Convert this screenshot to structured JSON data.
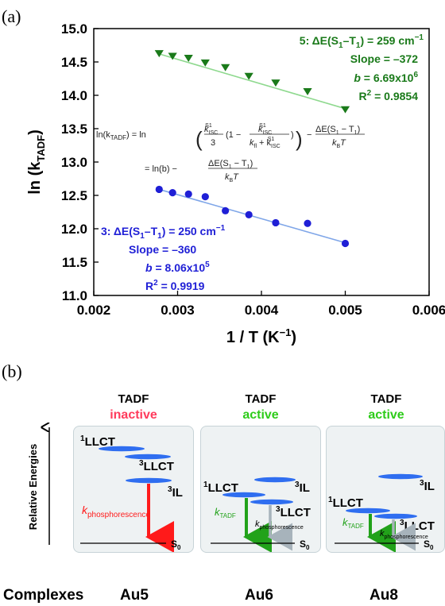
{
  "panel_a_label": "(a)",
  "panel_b_label": "(b)",
  "chart_data": {
    "type": "scatter",
    "xlabel_main": "1 / T (K",
    "xlabel_sup": "−1",
    "xlabel_end": ")",
    "ylabel_main": "ln (k",
    "ylabel_sub": "TADF",
    "ylabel_end": ")",
    "xlim": [
      0.002,
      0.006
    ],
    "ylim": [
      11.0,
      15.0
    ],
    "xticks": [
      "0.002",
      "0.003",
      "0.004",
      "0.005",
      "0.006"
    ],
    "yticks": [
      "11.0",
      "11.5",
      "12.0",
      "12.5",
      "13.0",
      "13.5",
      "14.0",
      "14.5",
      "15.0"
    ],
    "grid": false,
    "series": [
      {
        "marker": "triangle-down",
        "color": "#1a7a1a",
        "line_color": "#8fd98f",
        "x": [
          0.00278,
          0.00294,
          0.00313,
          0.00333,
          0.00357,
          0.00385,
          0.00417,
          0.00455,
          0.005
        ],
        "y": [
          14.63,
          14.59,
          14.56,
          14.49,
          14.42,
          14.29,
          14.19,
          14.06,
          13.79
        ],
        "fit": [
          [
            0.00278,
            14.62
          ],
          [
            0.005,
            13.8
          ]
        ],
        "annotation": {
          "title": "5: ΔE(S",
          "title_sub1": "1",
          "title_mid": "–T",
          "title_sub2": "1",
          "title_end": ") = 259 cm",
          "title_sup": "−1",
          "slope": "Slope = –372",
          "b_italic": "b",
          "b_text": " = 6.69x10",
          "b_sup": "6",
          "r2_main": "R",
          "r2_sup": "2",
          "r2_end": " = 0.9854"
        }
      },
      {
        "marker": "circle",
        "color": "#1f1fd6",
        "line_color": "#7fa6e8",
        "x": [
          0.00278,
          0.00294,
          0.00313,
          0.00333,
          0.00357,
          0.00385,
          0.00417,
          0.00455,
          0.005
        ],
        "y": [
          12.59,
          12.54,
          12.52,
          12.48,
          12.27,
          12.21,
          12.09,
          12.08,
          11.78
        ],
        "fit": [
          [
            0.00278,
            12.59
          ],
          [
            0.005,
            11.79
          ]
        ],
        "annotation": {
          "title": "3: ΔE(S",
          "title_sub1": "1",
          "title_mid": "–T",
          "title_sub2": "1",
          "title_end": ") = 250 cm",
          "title_sup": "−1",
          "slope": "Slope = –360",
          "b_italic": "b",
          "b_text": " = 8.06x10",
          "b_sup": "5",
          "r2_main": "R",
          "r2_sup": "2",
          "r2_end": " = 0.9919"
        }
      }
    ],
    "equation": {
      "lhs": "ln(k",
      "lhs_sub": "TADF",
      "lhs_end": ") = ln",
      "frac1_num": "k",
      "frac1_num_sub": "ISC",
      "frac1_num_sup": "S1",
      "frac1_den": "3",
      "paren_open": "(1 −",
      "frac2_num": "k",
      "frac2_num_sub": "ISC",
      "frac2_num_sup": "S1",
      "frac2_den": "k",
      "frac2_den_sub": "fl",
      "frac2_den_mid": " + k",
      "frac2_den_sub2": "ISC",
      "frac2_den_sup2": "S1",
      "paren_close": ")",
      "minus": "−",
      "frac3_num": "ΔE(S",
      "frac3_num_sub1": "1",
      "frac3_num_mid": " − T",
      "frac3_num_sub2": "1",
      "frac3_num_end": ")",
      "frac3_den": "k",
      "frac3_den_sub": "B",
      "frac3_den_end": "T",
      "line2_start": "= ln(b) −"
    }
  },
  "diagram": {
    "axis_label": "Relative Energies",
    "complexes_label": "Complexes",
    "boxes": [
      {
        "header1": "TADF",
        "header2": "inactive",
        "header2_color": "#ff3b5c",
        "name": "Au5",
        "lbl_1llct_sup": "1",
        "lbl_1llct": "LLCT",
        "lbl_3llct_sup": "3",
        "lbl_3llct": "LLCT",
        "lbl_3il_sup": "3",
        "lbl_3il": "IL",
        "k_main": "k",
        "k_sub": "phosphorescence",
        "s0_main": "S",
        "s0_sub": "0"
      },
      {
        "header1": "TADF",
        "header2": "active",
        "header2_color": "#2ecc1a",
        "name": "Au6",
        "lbl_1llct_sup": "1",
        "lbl_1llct": "LLCT",
        "lbl_3il_sup": "3",
        "lbl_3il": "IL",
        "lbl_3llct_sup": "3",
        "lbl_3llct": "LLCT",
        "ktadf_main": "k",
        "ktadf_sub": "TADF",
        "kph_main": "k",
        "kph_sub": "phosphorescence",
        "s0_main": "S",
        "s0_sub": "0"
      },
      {
        "header1": "TADF",
        "header2": "active",
        "header2_color": "#2ecc1a",
        "name": "Au8",
        "lbl_3il_sup": "3",
        "lbl_3il": "IL",
        "lbl_1llct_sup": "1",
        "lbl_1llct": "LLCT",
        "lbl_3llct_sup": "3",
        "lbl_3llct": "LLCT",
        "ktadf_main": "k",
        "ktadf_sub": "TADF",
        "kph_main": "k",
        "kph_sub": "phosphorescence",
        "s0_main": "S",
        "s0_sub": "0"
      }
    ]
  }
}
